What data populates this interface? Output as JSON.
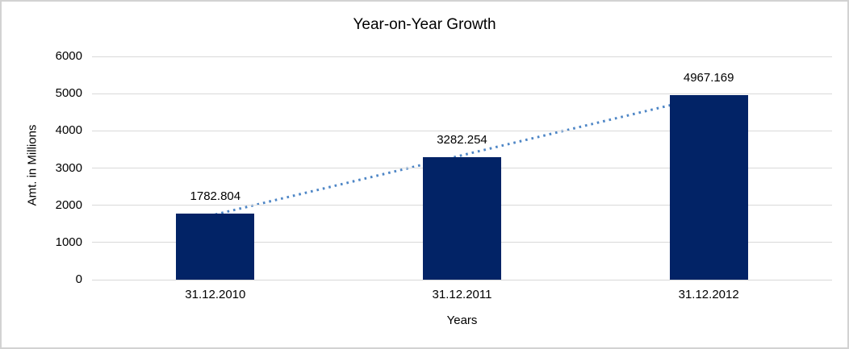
{
  "chart_data": {
    "type": "bar",
    "title": "Year-on-Year Growth",
    "xlabel": "Years",
    "ylabel": "Amt. in Millions",
    "categories": [
      "31.12.2010",
      "31.12.2011",
      "31.12.2012"
    ],
    "values": [
      1782.804,
      3282.254,
      4967.169
    ],
    "data_labels": [
      "1782.804",
      "3282.254",
      "4967.169"
    ],
    "ylim": [
      0,
      6000
    ],
    "yticks": [
      0,
      1000,
      2000,
      3000,
      4000,
      5000,
      6000
    ],
    "grid": true,
    "legend": "none",
    "trendline": {
      "type": "linear",
      "style": "dotted"
    },
    "colors": {
      "bar": "#022366",
      "trendline": "#4e86c6",
      "gridline": "#d9d9d9",
      "text": "#000000",
      "background": "#ffffff",
      "frame_border": "#d2d2d2"
    }
  }
}
